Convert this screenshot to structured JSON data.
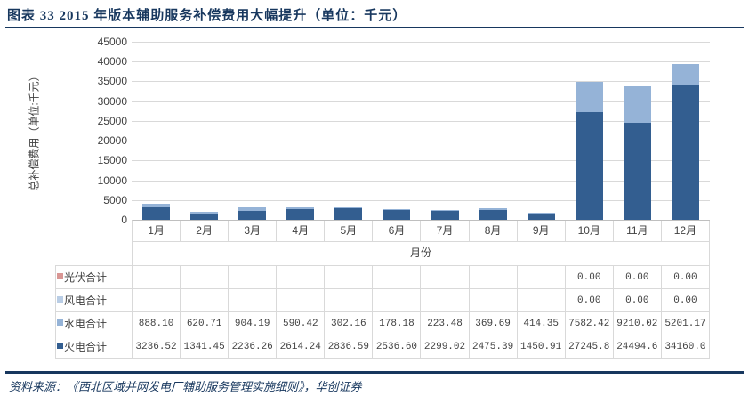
{
  "title": "图表 33  2015 年版本辅助服务补偿费用大幅提升（单位：千元）",
  "source": "资料来源：《西北区域并网发电厂辅助服务管理实施细则》，华创证券",
  "chart": {
    "y_axis_title": "总补偿费用（单位:千元）",
    "x_axis_label": "月份",
    "y_ticks": [
      0,
      5000,
      10000,
      15000,
      20000,
      25000,
      30000,
      35000,
      40000,
      45000
    ]
  },
  "chart_data": {
    "type": "bar",
    "stacked": true,
    "title": "2015 年版本辅助服务补偿费用大幅提升（单位：千元）",
    "xlabel": "月份",
    "ylabel": "总补偿费用（单位:千元）",
    "ylim": [
      0,
      45000
    ],
    "grid": "horizontal",
    "legend_position": "table-left",
    "categories": [
      "1月",
      "2月",
      "3月",
      "4月",
      "5月",
      "6月",
      "7月",
      "8月",
      "9月",
      "10月",
      "11月",
      "12月"
    ],
    "series": [
      {
        "name": "光伏合计",
        "color": "#D99694",
        "values": [
          0,
          0,
          0,
          0,
          0,
          0,
          0,
          0,
          0,
          0,
          0,
          0
        ]
      },
      {
        "name": "风电合计",
        "color": "#B9CDE5",
        "values": [
          0,
          0,
          0,
          0,
          0,
          0,
          0,
          0,
          0,
          0,
          0,
          0
        ]
      },
      {
        "name": "水电合计",
        "color": "#95B3D7",
        "values": [
          888.1,
          620.71,
          904.19,
          590.42,
          302.16,
          178.18,
          223.48,
          369.69,
          414.35,
          7582.42,
          9210.02,
          5201.17
        ]
      },
      {
        "name": "火电合计",
        "color": "#335E90",
        "values": [
          3236.52,
          1341.45,
          2236.26,
          2614.24,
          2836.59,
          2536.6,
          2299.02,
          2475.39,
          1450.91,
          27245.8,
          24494.6,
          34160.0
        ]
      }
    ],
    "stack_order_bottom_to_top": [
      "火电合计",
      "水电合计",
      "风电合计",
      "光伏合计"
    ]
  },
  "table": {
    "rows": [
      {
        "name": "光伏合计",
        "color": "#D99694",
        "cells": [
          "",
          "",
          "",
          "",
          "",
          "",
          "",
          "",
          "",
          "0.00",
          "0.00",
          "0.00"
        ]
      },
      {
        "name": "风电合计",
        "color": "#B9CDE5",
        "cells": [
          "",
          "",
          "",
          "",
          "",
          "",
          "",
          "",
          "",
          "0.00",
          "0.00",
          "0.00"
        ]
      },
      {
        "name": "水电合计",
        "color": "#95B3D7",
        "cells": [
          "888.10",
          "620.71",
          "904.19",
          "590.42",
          "302.16",
          "178.18",
          "223.48",
          "369.69",
          "414.35",
          "7582.42",
          "9210.02",
          "5201.17"
        ]
      },
      {
        "name": "火电合计",
        "color": "#335E90",
        "cells": [
          "3236.52",
          "1341.45",
          "2236.26",
          "2614.24",
          "2836.59",
          "2536.60",
          "2299.02",
          "2475.39",
          "1450.91",
          "27245.8",
          "24494.6",
          "34160.0"
        ]
      }
    ]
  }
}
